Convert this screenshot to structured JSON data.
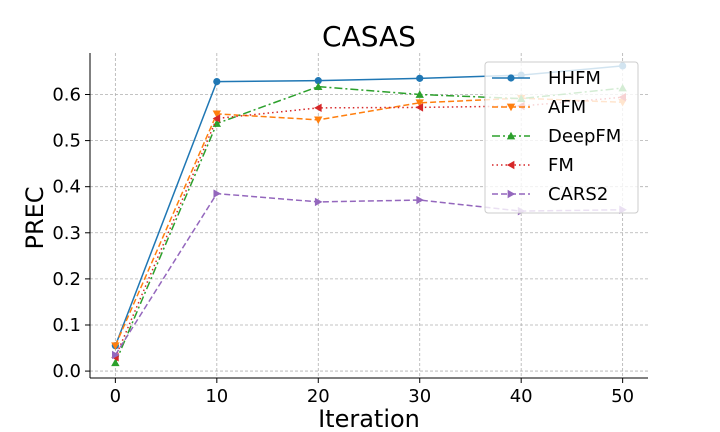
{
  "chart_data": {
    "type": "line",
    "title": "CASAS",
    "xlabel": "Iteration",
    "ylabel": "PREC",
    "x": [
      0,
      10,
      20,
      30,
      40,
      50
    ],
    "xticks": [
      "0",
      "10",
      "20",
      "30",
      "40",
      "50"
    ],
    "yticks": [
      "0.0",
      "0.1",
      "0.2",
      "0.3",
      "0.4",
      "0.5",
      "0.6"
    ],
    "xlim": [
      -2.5,
      52.5
    ],
    "ylim": [
      -0.015,
      0.69
    ],
    "grid": true,
    "legend_position": "top-right",
    "series": [
      {
        "name": "HHFM",
        "values": [
          0.055,
          0.628,
          0.63,
          0.635,
          0.642,
          0.662
        ],
        "color": "#1f77b4",
        "dash": "",
        "marker": "circle"
      },
      {
        "name": "AFM",
        "values": [
          0.055,
          0.558,
          0.545,
          0.582,
          0.592,
          0.583
        ],
        "color": "#ff7f0e",
        "dash": "6 3",
        "marker": "triangle-down"
      },
      {
        "name": "DeepFM",
        "values": [
          0.018,
          0.537,
          0.617,
          0.6,
          0.591,
          0.614
        ],
        "color": "#2ca02c",
        "dash": "8 3 2 3",
        "marker": "triangle-up"
      },
      {
        "name": "FM",
        "values": [
          0.03,
          0.548,
          0.571,
          0.572,
          0.575,
          0.594
        ],
        "color": "#d62728",
        "dash": "1.5 3",
        "marker": "triangle-left"
      },
      {
        "name": "CARS2",
        "values": [
          0.035,
          0.385,
          0.367,
          0.371,
          0.347,
          0.35
        ],
        "color": "#9467bd",
        "dash": "6 3",
        "marker": "triangle-right"
      }
    ]
  }
}
